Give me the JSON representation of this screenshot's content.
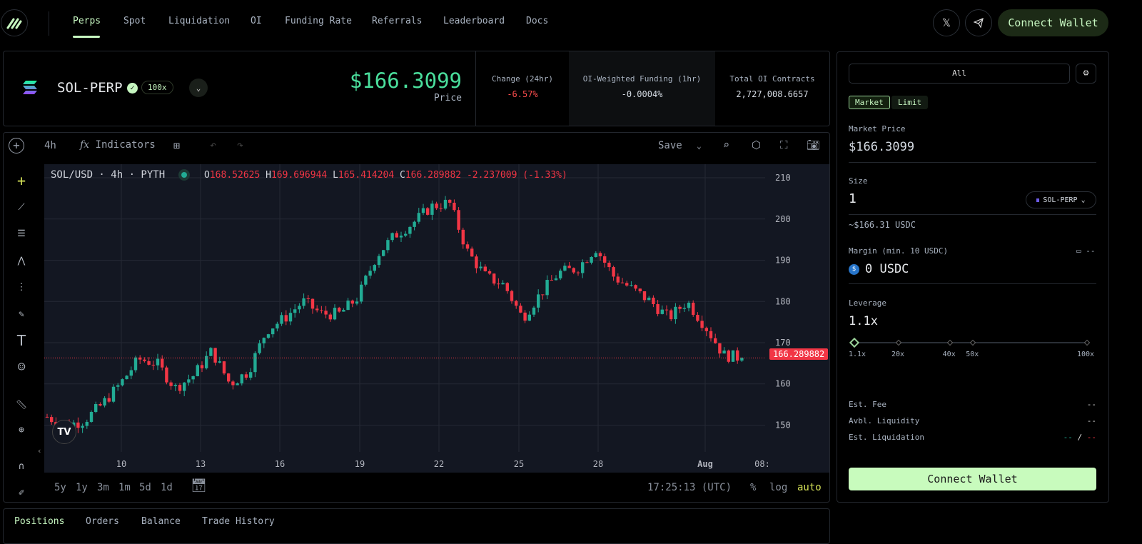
{
  "nav": {
    "items": [
      "Perps",
      "Spot",
      "Liquidation",
      "OI",
      "Funding Rate",
      "Referrals",
      "Leaderboard",
      "Docs"
    ],
    "active": "Perps",
    "x_label": "𝕏",
    "connect_wallet": "Connect Wallet"
  },
  "market": {
    "symbol": "SOL-PERP",
    "leverage_badge": "100x",
    "price": "$166.3099",
    "price_label": "Price",
    "stats": [
      {
        "label": "Change (24hr)",
        "value": "-6.57%"
      },
      {
        "label": "OI-Weighted Funding (1hr)",
        "value": "-0.0004%"
      },
      {
        "label": "Total OI Contracts",
        "value": "2,727,008.6657"
      }
    ]
  },
  "chart": {
    "interval": "4h",
    "indicators": "Indicators",
    "save": "Save",
    "legend": {
      "title": "SOL/USD · 4h · PYTH",
      "o_label": "O",
      "o": "168.52625",
      "h_label": "H",
      "h": "169.696944",
      "l_label": "L",
      "l": "165.414204",
      "c_label": "C",
      "c": "166.289882",
      "change": "-2.237009 (-1.33%)"
    },
    "last_price_tag": "166.289882",
    "y_ticks": [
      "210",
      "200",
      "190",
      "180",
      "170",
      "160",
      "150"
    ],
    "x_ticks": [
      "10",
      "13",
      "16",
      "19",
      "22",
      "25",
      "28",
      "Aug",
      "08:"
    ],
    "ranges": [
      "5y",
      "1y",
      "3m",
      "1m",
      "5d",
      "1d"
    ],
    "time": "17:25:13 (UTC)",
    "pct": "%",
    "log": "log",
    "auto": "auto",
    "colors": {
      "up": "#22ab94",
      "down": "#f23645",
      "bg": "#131722"
    },
    "price_path": [
      152,
      150,
      151,
      155,
      160,
      166,
      165,
      159,
      162,
      168,
      160,
      163,
      173,
      176,
      180,
      177,
      177,
      181,
      191,
      196,
      199,
      203,
      204,
      192,
      186,
      184,
      176,
      182,
      187,
      188,
      193,
      186,
      183,
      180,
      176,
      180,
      174,
      167,
      166.3
    ]
  },
  "order": {
    "tab_all": "All",
    "types": [
      "Market",
      "Limit"
    ],
    "market_price_label": "Market Price",
    "market_price": "$166.3099",
    "size_label": "Size",
    "size": "1",
    "size_asset": "SOL-PERP",
    "size_usd": "~$166.31 USDC",
    "margin_label": "Margin (min. 10 USDC)",
    "margin_balance": "--",
    "margin": "0 USDC",
    "leverage_label": "Leverage",
    "leverage": "1.1x",
    "leverage_fraction": 0.0,
    "leverage_marks": [
      "1.1x",
      "20x",
      "40x",
      "50x",
      "100x"
    ],
    "est_fee_label": "Est. Fee",
    "est_fee": "--",
    "liq_label": "Avbl. Liquidity",
    "liq": "--",
    "est_liq_label": "Est. Liquidation",
    "est_liq_long": "--",
    "est_liq_sep": "/",
    "est_liq_short": "--",
    "connect_wallet": "Connect Wallet"
  },
  "bottom_tabs": [
    "Positions",
    "Orders",
    "Balance",
    "Trade History"
  ]
}
